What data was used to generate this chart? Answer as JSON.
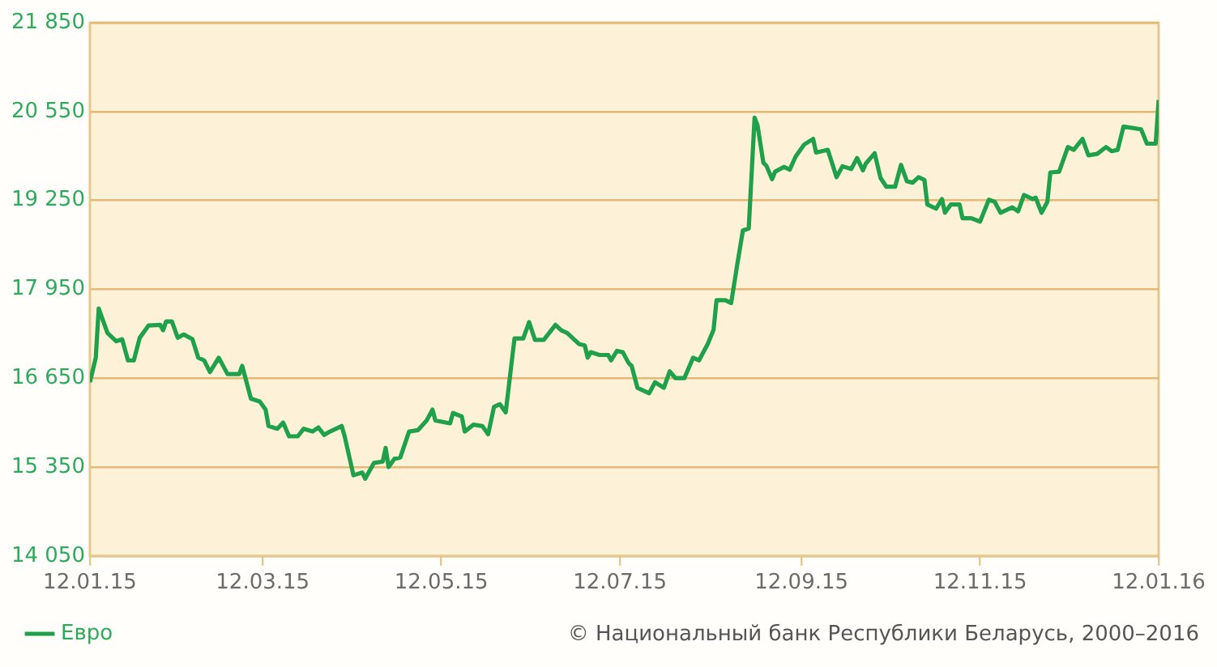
{
  "chart_data": {
    "type": "line",
    "x": [
      "2015-01-12",
      "2015-01-14",
      "2015-01-15",
      "2015-01-18",
      "2015-01-21",
      "2015-01-23",
      "2015-01-25",
      "2015-01-27",
      "2015-01-29",
      "2015-02-01",
      "2015-02-05",
      "2015-02-06",
      "2015-02-07",
      "2015-02-09",
      "2015-02-11",
      "2015-02-13",
      "2015-02-16",
      "2015-02-18",
      "2015-02-20",
      "2015-02-22",
      "2015-02-25",
      "2015-02-28",
      "2015-03-04",
      "2015-03-05",
      "2015-03-08",
      "2015-03-11",
      "2015-03-13",
      "2015-03-14",
      "2015-03-17",
      "2015-03-19",
      "2015-03-21",
      "2015-03-24",
      "2015-03-26",
      "2015-03-29",
      "2015-03-31",
      "2015-04-02",
      "2015-04-04",
      "2015-04-08",
      "2015-04-09",
      "2015-04-12",
      "2015-04-15",
      "2015-04-16",
      "2015-04-19",
      "2015-04-22",
      "2015-04-23",
      "2015-04-24",
      "2015-04-26",
      "2015-04-28",
      "2015-05-01",
      "2015-05-04",
      "2015-05-07",
      "2015-05-09",
      "2015-05-10",
      "2015-05-15",
      "2015-05-16",
      "2015-05-19",
      "2015-05-20",
      "2015-05-23",
      "2015-05-26",
      "2015-05-28",
      "2015-05-30",
      "2015-06-01",
      "2015-06-03",
      "2015-06-06",
      "2015-06-09",
      "2015-06-11",
      "2015-06-13",
      "2015-06-16",
      "2015-06-20",
      "2015-06-22",
      "2015-06-24",
      "2015-06-28",
      "2015-06-30",
      "2015-07-01",
      "2015-07-02",
      "2015-07-05",
      "2015-07-08",
      "2015-07-09",
      "2015-07-11",
      "2015-07-13",
      "2015-07-15",
      "2015-07-16",
      "2015-07-18",
      "2015-07-22",
      "2015-07-24",
      "2015-07-27",
      "2015-07-29",
      "2015-07-31",
      "2015-08-03",
      "2015-08-06",
      "2015-08-08",
      "2015-08-11",
      "2015-08-13",
      "2015-08-14",
      "2015-08-17",
      "2015-08-19",
      "2015-08-21",
      "2015-08-23",
      "2015-08-25",
      "2015-08-27",
      "2015-08-28",
      "2015-08-30",
      "2015-08-31",
      "2015-09-02",
      "2015-09-03",
      "2015-09-06",
      "2015-09-08",
      "2015-09-10",
      "2015-09-13",
      "2015-09-16",
      "2015-09-17",
      "2015-09-21",
      "2015-09-24",
      "2015-09-26",
      "2015-09-29",
      "2015-10-01",
      "2015-10-03",
      "2015-10-04",
      "2015-10-07",
      "2015-10-09",
      "2015-10-11",
      "2015-10-14",
      "2015-10-16",
      "2015-10-18",
      "2015-10-20",
      "2015-10-22",
      "2015-10-24",
      "2015-10-25",
      "2015-10-28",
      "2015-10-30",
      "2015-10-31",
      "2015-11-02",
      "2015-11-05",
      "2015-11-06",
      "2015-11-09",
      "2015-11-12",
      "2015-11-15",
      "2015-11-17",
      "2015-11-19",
      "2015-11-23",
      "2015-11-25",
      "2015-11-27",
      "2015-11-30",
      "2015-12-01",
      "2015-12-03",
      "2015-12-05",
      "2015-12-06",
      "2015-12-09",
      "2015-12-12",
      "2015-12-14",
      "2015-12-17",
      "2015-12-19",
      "2015-12-22",
      "2015-12-25",
      "2015-12-27",
      "2015-12-29",
      "2015-12-31",
      "2016-01-06",
      "2016-01-08",
      "2016-01-11",
      "2016-01-12"
    ],
    "series": [
      {
        "name": "Евро",
        "color": "#1fa04a",
        "values": [
          16590,
          16950,
          17670,
          17310,
          17190,
          17220,
          16910,
          16910,
          17240,
          17420,
          17430,
          17350,
          17480,
          17480,
          17240,
          17290,
          17220,
          16950,
          16910,
          16740,
          16950,
          16710,
          16710,
          16830,
          16350,
          16310,
          16190,
          15950,
          15910,
          16000,
          15800,
          15800,
          15910,
          15870,
          15930,
          15820,
          15870,
          15950,
          15800,
          15230,
          15270,
          15180,
          15410,
          15430,
          15630,
          15350,
          15470,
          15490,
          15870,
          15890,
          16030,
          16190,
          16030,
          15990,
          16140,
          16090,
          15870,
          15970,
          15950,
          15830,
          16230,
          16270,
          16150,
          17230,
          17230,
          17470,
          17210,
          17210,
          17430,
          17350,
          17310,
          17150,
          17130,
          16950,
          17030,
          16990,
          16990,
          16910,
          17050,
          17030,
          16870,
          16830,
          16510,
          16430,
          16590,
          16510,
          16750,
          16650,
          16650,
          16950,
          16910,
          17150,
          17360,
          17790,
          17790,
          17750,
          18290,
          18810,
          18840,
          20460,
          20350,
          19800,
          19760,
          19560,
          19670,
          19740,
          19700,
          19890,
          20070,
          20150,
          19950,
          19990,
          19590,
          19750,
          19710,
          19870,
          19690,
          19790,
          19940,
          19580,
          19450,
          19450,
          19770,
          19530,
          19510,
          19590,
          19550,
          19190,
          19130,
          19270,
          19070,
          19190,
          19190,
          18990,
          18990,
          18940,
          19260,
          19230,
          19070,
          19150,
          19090,
          19330,
          19270,
          19290,
          19070,
          19230,
          19660,
          19670,
          20030,
          19990,
          20150,
          19910,
          19930,
          20030,
          19970,
          19990,
          20330,
          20290,
          20080,
          20080,
          20720
        ]
      }
    ],
    "xlim": [
      "2015-01-12",
      "2016-01-12"
    ],
    "xticks": [
      {
        "value": "2015-01-12",
        "label": "12.01.15"
      },
      {
        "value": "2015-03-12",
        "label": "12.03.15"
      },
      {
        "value": "2015-05-12",
        "label": "12.05.15"
      },
      {
        "value": "2015-07-12",
        "label": "12.07.15"
      },
      {
        "value": "2015-09-12",
        "label": "12.09.15"
      },
      {
        "value": "2015-11-12",
        "label": "12.11.15"
      },
      {
        "value": "2016-01-12",
        "label": "12.01.16"
      }
    ],
    "ylim": [
      14050,
      21850
    ],
    "yticks": [
      {
        "value": 14050,
        "label": "14 050"
      },
      {
        "value": 15350,
        "label": "15 350"
      },
      {
        "value": 16650,
        "label": "16 650"
      },
      {
        "value": 17950,
        "label": "17 950"
      },
      {
        "value": 19250,
        "label": "19 250"
      },
      {
        "value": 20550,
        "label": "20 550"
      },
      {
        "value": 21850,
        "label": "21 850"
      }
    ],
    "grid": "y",
    "legend": "bottom left",
    "marker": "none",
    "line_style": "solid",
    "annotations": [
      "© Национальный банк Республики Беларусь, 2000–2016"
    ]
  }
}
